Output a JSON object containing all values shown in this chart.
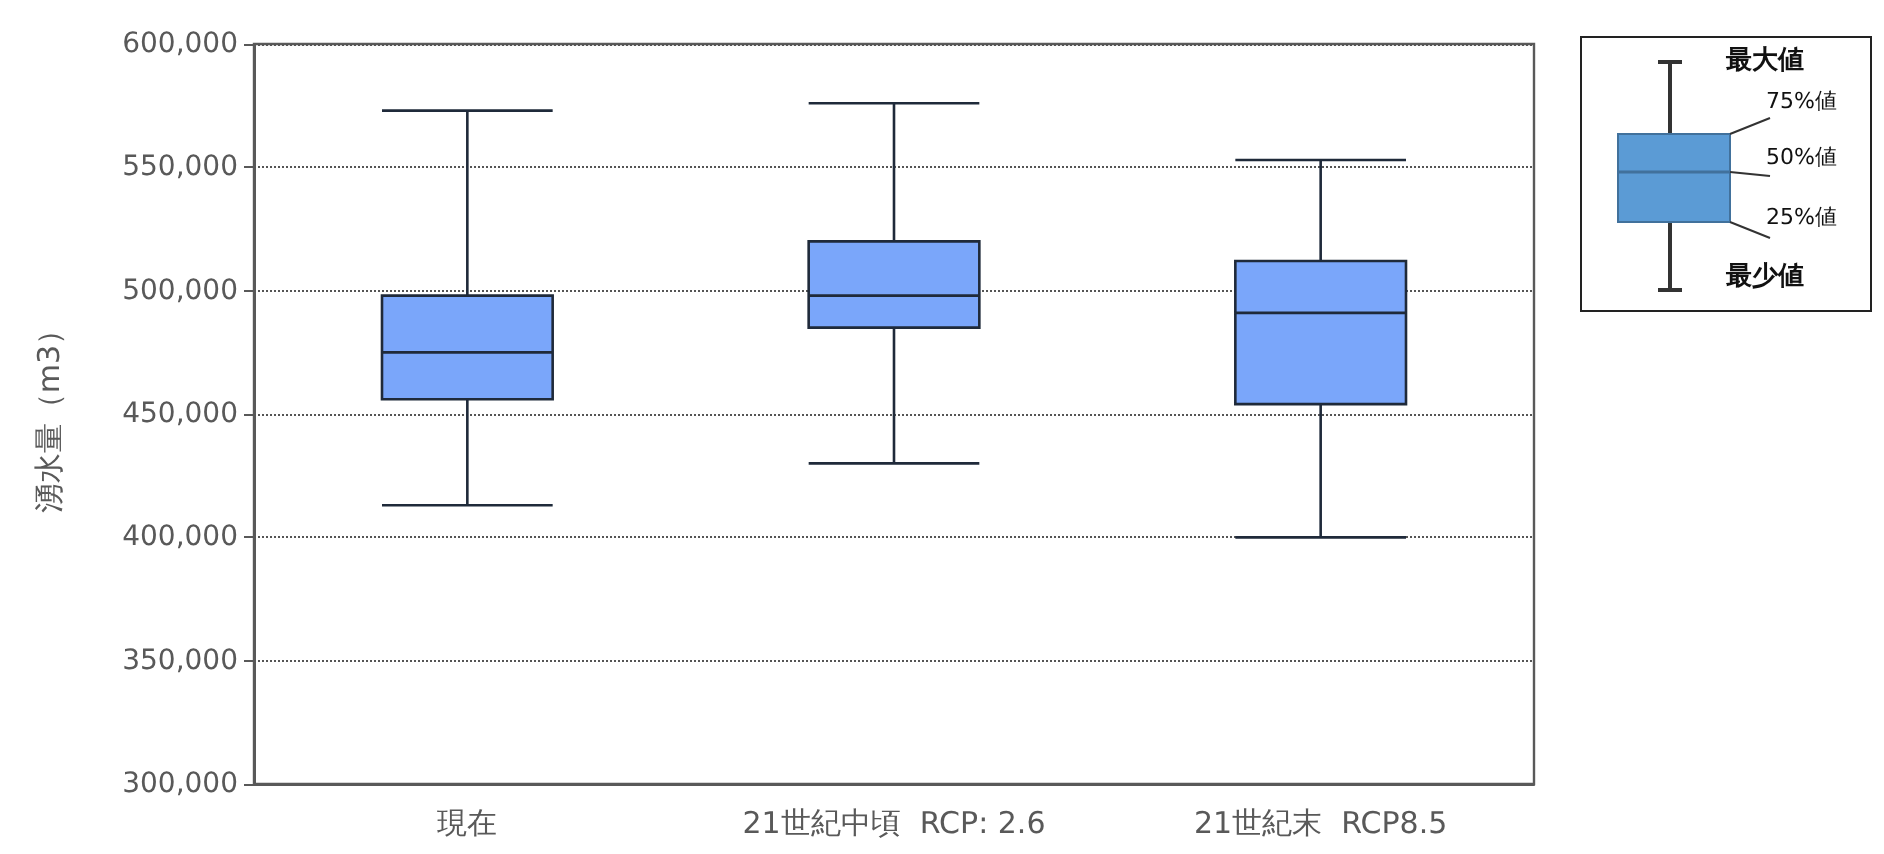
{
  "chart_data": {
    "type": "box",
    "ylabel": "湧水量（m3）",
    "categories": [
      "現在",
      "21世紀中頃  RCP: 2.6",
      "21世紀末  RCP8.5"
    ],
    "series": [
      {
        "color": "#7aa6fa",
        "boxes": [
          {
            "low": 413000,
            "q1": 456000,
            "median": 475000,
            "q3": 498000,
            "high": 573000
          },
          {
            "low": 430000,
            "q1": 485000,
            "median": 498000,
            "q3": 520000,
            "high": 576000
          },
          {
            "low": 400000,
            "q1": 454000,
            "median": 491000,
            "q3": 512000,
            "high": 553000
          }
        ]
      }
    ],
    "ylim": [
      300000,
      600000
    ],
    "yticks": [
      {
        "value": 300000,
        "label": "300,000"
      },
      {
        "value": 350000,
        "label": "350,000"
      },
      {
        "value": 400000,
        "label": "400,000"
      },
      {
        "value": 450000,
        "label": "450,000"
      },
      {
        "value": 500000,
        "label": "500,000"
      },
      {
        "value": 550000,
        "label": "550,000"
      },
      {
        "value": 600000,
        "label": "600,000"
      }
    ],
    "grid": "y",
    "annotations": [
      "最大値",
      "75%値",
      "50%値",
      "25%値",
      "最少値"
    ]
  }
}
